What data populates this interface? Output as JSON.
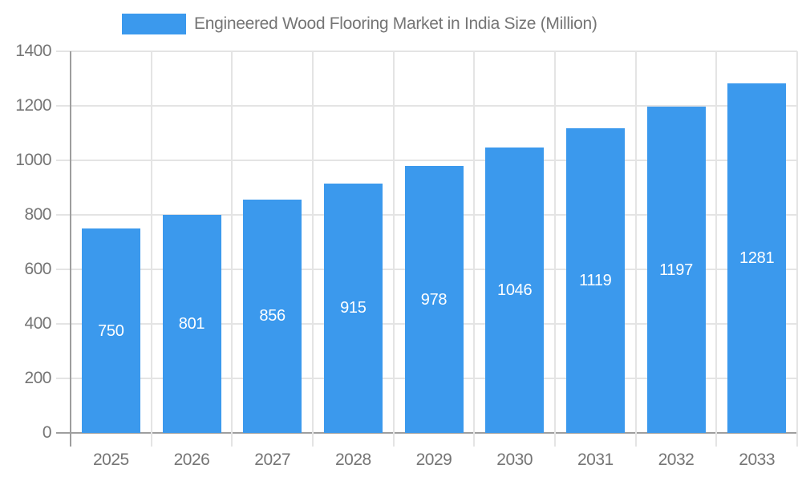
{
  "legend": {
    "series_label": "Engineered Wood Flooring Market in India Size (Million)"
  },
  "chart_data": {
    "type": "bar",
    "title": "Engineered Wood Flooring Market in India Size (Million)",
    "categories": [
      "2025",
      "2026",
      "2027",
      "2028",
      "2029",
      "2030",
      "2031",
      "2032",
      "2033"
    ],
    "values": [
      750,
      801,
      856,
      915,
      978,
      1046,
      1119,
      1197,
      1281
    ],
    "value_labels_shown": true,
    "xlabel": "",
    "ylabel": "",
    "ylim": [
      0,
      1400
    ],
    "yticks": [
      0,
      200,
      400,
      600,
      800,
      1000,
      1200,
      1400
    ],
    "grid": true,
    "legend_position": "top",
    "colors": {
      "bar": "#3B99ED",
      "bar_value_label": "#FFFFFF",
      "grid_line": "#E4E4E4",
      "axis_line": "#9E9E9E",
      "text": "#757575",
      "background": "#FFFFFF"
    }
  }
}
